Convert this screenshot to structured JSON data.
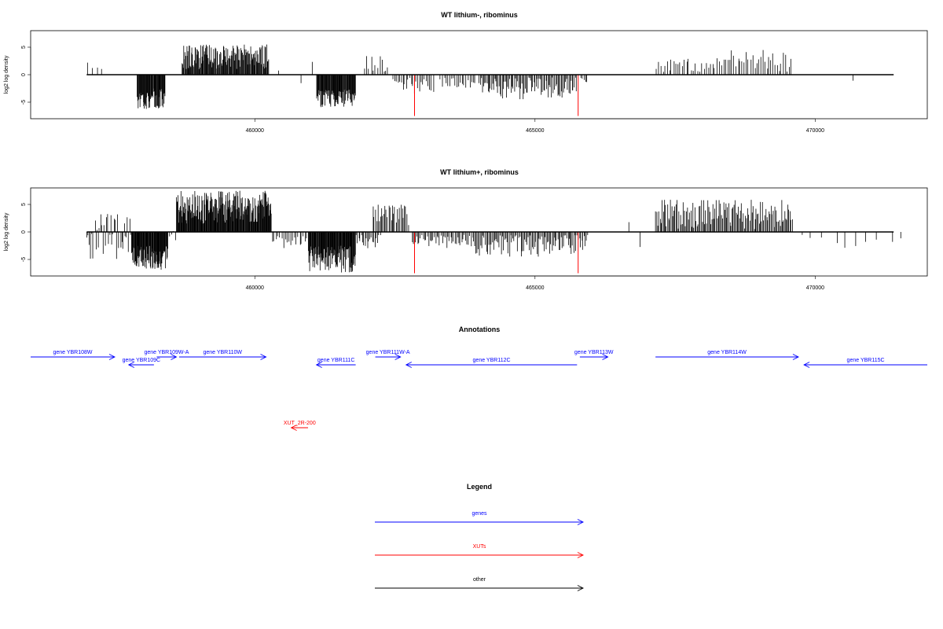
{
  "chart_data": [
    {
      "type": "bar",
      "title": "WT lithium-, ribominus",
      "ylabel": "log2 log density",
      "xlim": [
        456000,
        472000
      ],
      "ylim": [
        -8,
        8
      ],
      "xticks": [
        460000,
        465000,
        470000
      ],
      "yticks": [
        5,
        0,
        -5
      ],
      "series": [
        {
          "color": "#000000",
          "segments": [
            {
              "from": 457000,
              "to": 457300,
              "min": 0.5,
              "max": 2.5,
              "count": 4
            },
            {
              "from": 457900,
              "to": 458400,
              "min": -6.5,
              "max": -2.5,
              "count": 60
            },
            {
              "from": 458700,
              "to": 460250,
              "min": 1.0,
              "max": 5.5,
              "count": 150
            },
            {
              "from": 460400,
              "to": 460450,
              "min": 0.5,
              "max": 1.0,
              "count": 1
            },
            {
              "from": 460800,
              "to": 460850,
              "min": -2.0,
              "max": -1.5,
              "count": 1
            },
            {
              "from": 461000,
              "to": 461050,
              "min": 2.0,
              "max": 2.5,
              "count": 1
            },
            {
              "from": 461100,
              "to": 461800,
              "min": -6.0,
              "max": -2.5,
              "count": 80
            },
            {
              "from": 461950,
              "to": 462400,
              "min": 0.5,
              "max": 3.5,
              "count": 12
            },
            {
              "from": 462450,
              "to": 463200,
              "min": -3.5,
              "max": -0.5,
              "count": 25
            },
            {
              "from": 463300,
              "to": 463950,
              "min": -2.5,
              "max": -0.5,
              "count": 20
            },
            {
              "from": 464000,
              "to": 465750,
              "min": -4.5,
              "max": -0.5,
              "count": 90
            },
            {
              "from": 465800,
              "to": 465950,
              "min": -1.5,
              "max": -0.5,
              "count": 5
            },
            {
              "from": 467150,
              "to": 468500,
              "min": 0.5,
              "max": 3.0,
              "count": 35
            },
            {
              "from": 468500,
              "to": 469600,
              "min": 0.5,
              "max": 4.5,
              "count": 30
            },
            {
              "from": 470650,
              "to": 470700,
              "min": -1.5,
              "max": -1.0,
              "count": 1
            }
          ]
        },
        {
          "color": "#ff0000",
          "bars": [
            {
              "x": 462850,
              "y": -7.5
            },
            {
              "x": 465770,
              "y": -7.5
            }
          ]
        }
      ]
    },
    {
      "type": "bar",
      "title": "WT lithium+, ribominus",
      "ylabel": "log2 log density",
      "xlim": [
        456000,
        472000
      ],
      "ylim": [
        -8,
        8
      ],
      "xticks": [
        460000,
        465000,
        470000
      ],
      "yticks": [
        5,
        0,
        -5
      ],
      "series": [
        {
          "color": "#000000",
          "segments": [
            {
              "from": 457000,
              "to": 457800,
              "min": -5.0,
              "max": 3.5,
              "count": 40
            },
            {
              "from": 457800,
              "to": 458450,
              "min": -7.0,
              "max": -2.5,
              "count": 80
            },
            {
              "from": 458450,
              "to": 458600,
              "min": -1.5,
              "max": 1.0,
              "count": 4
            },
            {
              "from": 458600,
              "to": 460300,
              "min": 1.5,
              "max": 7.5,
              "count": 200
            },
            {
              "from": 460300,
              "to": 460950,
              "min": -3.0,
              "max": -0.5,
              "count": 20
            },
            {
              "from": 460950,
              "to": 461800,
              "min": -7.5,
              "max": -2.5,
              "count": 100
            },
            {
              "from": 461800,
              "to": 462250,
              "min": -3.0,
              "max": -0.5,
              "count": 20
            },
            {
              "from": 462100,
              "to": 462750,
              "min": 1.0,
              "max": 5.0,
              "count": 30
            },
            {
              "from": 462800,
              "to": 463900,
              "min": -3.0,
              "max": -0.5,
              "count": 45
            },
            {
              "from": 463900,
              "to": 465950,
              "min": -4.5,
              "max": -0.5,
              "count": 100
            },
            {
              "from": 466650,
              "to": 466700,
              "min": 1.5,
              "max": 2.0,
              "count": 1
            },
            {
              "from": 466850,
              "to": 466900,
              "min": -3.0,
              "max": -2.5,
              "count": 1
            },
            {
              "from": 467150,
              "to": 469600,
              "min": 0.5,
              "max": 6.0,
              "count": 130
            },
            {
              "from": 469650,
              "to": 471700,
              "min": -3.0,
              "max": -0.5,
              "count": 10
            }
          ]
        },
        {
          "color": "#ff0000",
          "bars": [
            {
              "x": 462850,
              "y": -7.5
            },
            {
              "x": 465770,
              "y": -7.5
            }
          ]
        }
      ]
    },
    {
      "type": "diagram",
      "title": "Annotations",
      "xlim": [
        456000,
        472000
      ],
      "features": [
        {
          "label": "gene YBR108W",
          "start": 456000,
          "end": 457500,
          "strand": "+",
          "row": 0,
          "color": "#0000ff"
        },
        {
          "label": "gene YBR109C",
          "start": 457750,
          "end": 458200,
          "strand": "-",
          "row": 1,
          "color": "#0000ff"
        },
        {
          "label": "gene YBR109W-A",
          "start": 458250,
          "end": 458600,
          "strand": "+",
          "row": 0,
          "color": "#0000ff"
        },
        {
          "label": "gene YBR110W",
          "start": 458650,
          "end": 460200,
          "strand": "+",
          "row": 0,
          "color": "#0000ff"
        },
        {
          "label": "gene YBR111C",
          "start": 461100,
          "end": 461800,
          "strand": "-",
          "row": 1,
          "color": "#0000ff"
        },
        {
          "label": "gene YBR111W-A",
          "start": 462150,
          "end": 462600,
          "strand": "+",
          "row": 0,
          "color": "#0000ff"
        },
        {
          "label": "gene YBR112C",
          "start": 462700,
          "end": 465750,
          "strand": "-",
          "row": 1,
          "color": "#0000ff"
        },
        {
          "label": "gene YBR113W",
          "start": 465800,
          "end": 466300,
          "strand": "+",
          "row": 0,
          "color": "#0000ff"
        },
        {
          "label": "gene YBR114W",
          "start": 467150,
          "end": 469700,
          "strand": "+",
          "row": 0,
          "color": "#0000ff"
        },
        {
          "label": "gene YBR115C",
          "start": 469800,
          "end": 472000,
          "strand": "-",
          "row": 1,
          "color": "#0000ff"
        },
        {
          "label": "XUT_2R-200",
          "start": 460650,
          "end": 460950,
          "strand": "-",
          "row": 9,
          "color": "#ff0000"
        }
      ]
    },
    {
      "type": "legend",
      "title": "Legend",
      "entries": [
        {
          "label": "genes",
          "color": "#0000ff"
        },
        {
          "label": "XUTs",
          "color": "#ff0000"
        },
        {
          "label": "other",
          "color": "#000000"
        }
      ]
    }
  ]
}
